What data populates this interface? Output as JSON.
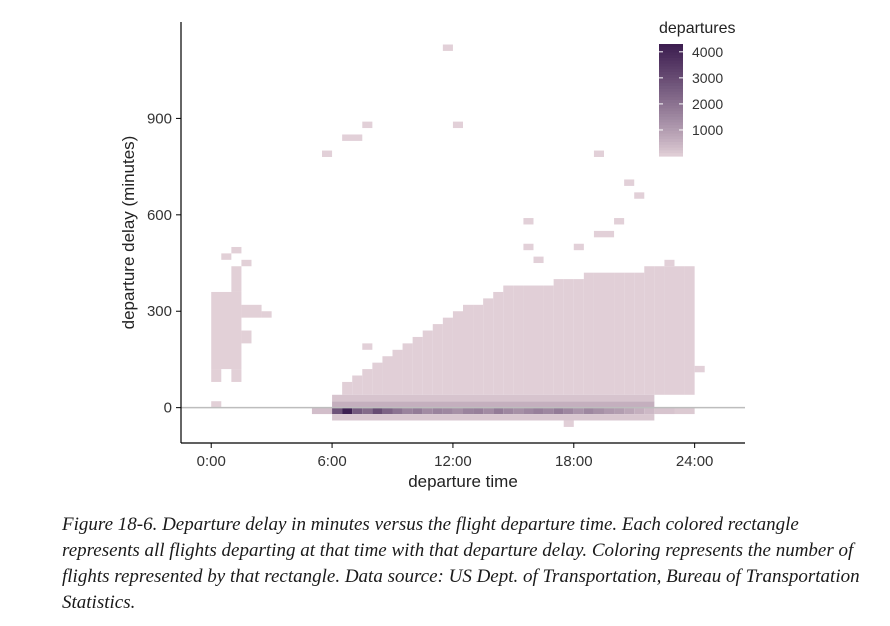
{
  "chart_data": {
    "type": "heatmap",
    "xlabel": "departure time",
    "ylabel": "departure delay (minutes)",
    "xlim": [
      -1.5,
      26.5
    ],
    "ylim": [
      -110,
      1200
    ],
    "x_ticks": [
      0,
      6,
      12,
      18,
      24
    ],
    "x_tick_labels": [
      "0:00",
      "6:00",
      "12:00",
      "18:00",
      "24:00"
    ],
    "y_ticks": [
      0,
      300,
      600,
      900
    ],
    "y_tick_labels": [
      "0",
      "300",
      "600",
      "900"
    ],
    "legend": {
      "title": "departures",
      "placement": "top-right",
      "breaks": [
        1000,
        2000,
        3000,
        4000
      ],
      "break_labels": [
        "1000",
        "2000",
        "3000",
        "4000"
      ],
      "range": [
        0,
        4300
      ],
      "low_color": "#e3d1d8",
      "high_color": "#3b1c4f"
    },
    "grid": false,
    "cell_units": {
      "width_hours": 0.5,
      "height_minutes": 20
    },
    "baseline_y": 0,
    "baseline_color": "#bdbdbd",
    "cells": [
      {
        "x": [
          5.0,
          6.0
        ],
        "y": [
          -20,
          0
        ],
        "value": 300
      },
      {
        "x": [
          6.0,
          6.5
        ],
        "y": [
          -20,
          0
        ],
        "value": 2800
      },
      {
        "x": [
          6.5,
          7.0
        ],
        "y": [
          -20,
          0
        ],
        "value": 4200
      },
      {
        "x": [
          7.0,
          7.5
        ],
        "y": [
          -20,
          0
        ],
        "value": 2600
      },
      {
        "x": [
          7.5,
          8.0
        ],
        "y": [
          -20,
          0
        ],
        "value": 2200
      },
      {
        "x": [
          8.0,
          8.5
        ],
        "y": [
          -20,
          0
        ],
        "value": 3000
      },
      {
        "x": [
          8.5,
          9.0
        ],
        "y": [
          -20,
          0
        ],
        "value": 2400
      },
      {
        "x": [
          9.0,
          9.5
        ],
        "y": [
          -20,
          0
        ],
        "value": 2000
      },
      {
        "x": [
          9.5,
          10.0
        ],
        "y": [
          -20,
          0
        ],
        "value": 1600
      },
      {
        "x": [
          10.0,
          10.5
        ],
        "y": [
          -20,
          0
        ],
        "value": 1800
      },
      {
        "x": [
          10.5,
          11.0
        ],
        "y": [
          -20,
          0
        ],
        "value": 1400
      },
      {
        "x": [
          11.0,
          11.5
        ],
        "y": [
          -20,
          0
        ],
        "value": 1600
      },
      {
        "x": [
          11.5,
          12.0
        ],
        "y": [
          -20,
          0
        ],
        "value": 1500
      },
      {
        "x": [
          12.0,
          12.5
        ],
        "y": [
          -20,
          0
        ],
        "value": 1300
      },
      {
        "x": [
          12.5,
          13.0
        ],
        "y": [
          -20,
          0
        ],
        "value": 1600
      },
      {
        "x": [
          13.0,
          13.5
        ],
        "y": [
          -20,
          0
        ],
        "value": 1700
      },
      {
        "x": [
          13.5,
          14.0
        ],
        "y": [
          -20,
          0
        ],
        "value": 1400
      },
      {
        "x": [
          14.0,
          14.5
        ],
        "y": [
          -20,
          0
        ],
        "value": 1800
      },
      {
        "x": [
          14.5,
          15.0
        ],
        "y": [
          -20,
          0
        ],
        "value": 1500
      },
      {
        "x": [
          15.0,
          15.5
        ],
        "y": [
          -20,
          0
        ],
        "value": 1300
      },
      {
        "x": [
          15.5,
          16.0
        ],
        "y": [
          -20,
          0
        ],
        "value": 1500
      },
      {
        "x": [
          16.0,
          16.5
        ],
        "y": [
          -20,
          0
        ],
        "value": 1700
      },
      {
        "x": [
          16.5,
          17.0
        ],
        "y": [
          -20,
          0
        ],
        "value": 1500
      },
      {
        "x": [
          17.0,
          17.5
        ],
        "y": [
          -20,
          0
        ],
        "value": 1800
      },
      {
        "x": [
          17.5,
          18.0
        ],
        "y": [
          -20,
          0
        ],
        "value": 1500
      },
      {
        "x": [
          18.0,
          18.5
        ],
        "y": [
          -20,
          0
        ],
        "value": 1200
      },
      {
        "x": [
          18.5,
          19.0
        ],
        "y": [
          -20,
          0
        ],
        "value": 1500
      },
      {
        "x": [
          19.0,
          19.5
        ],
        "y": [
          -20,
          0
        ],
        "value": 1300
      },
      {
        "x": [
          19.5,
          20.0
        ],
        "y": [
          -20,
          0
        ],
        "value": 1100
      },
      {
        "x": [
          20.0,
          20.5
        ],
        "y": [
          -20,
          0
        ],
        "value": 1000
      },
      {
        "x": [
          20.5,
          21.0
        ],
        "y": [
          -20,
          0
        ],
        "value": 800
      },
      {
        "x": [
          21.0,
          21.5
        ],
        "y": [
          -20,
          0
        ],
        "value": 600
      },
      {
        "x": [
          21.5,
          22.0
        ],
        "y": [
          -20,
          0
        ],
        "value": 400
      },
      {
        "x": [
          22.0,
          23.0
        ],
        "y": [
          -20,
          0
        ],
        "value": 200
      },
      {
        "x": [
          23.0,
          24.0
        ],
        "y": [
          -20,
          0
        ],
        "value": 100
      },
      {
        "x": [
          6.0,
          22.0
        ],
        "y": [
          0,
          20
        ],
        "value": 600
      },
      {
        "x": [
          6.0,
          22.0
        ],
        "y": [
          20,
          40
        ],
        "value": 200
      },
      {
        "x": [
          6.0,
          22.0
        ],
        "y": [
          -40,
          -20
        ],
        "value": 150
      },
      {
        "x": [
          17.5,
          18.0
        ],
        "y": [
          -60,
          -40
        ],
        "value": 20
      },
      {
        "x": [
          0.0,
          0.5
        ],
        "y": [
          0,
          20
        ],
        "value": 10
      },
      {
        "x": [
          0.0,
          0.5
        ],
        "y": [
          80,
          120
        ],
        "value": 10
      },
      {
        "x": [
          0.0,
          1.5
        ],
        "y": [
          120,
          360
        ],
        "value": 10
      },
      {
        "x": [
          1.0,
          1.5
        ],
        "y": [
          360,
          440
        ],
        "value": 10
      },
      {
        "x": [
          0.5,
          1.0
        ],
        "y": [
          460,
          480
        ],
        "value": 10
      },
      {
        "x": [
          1.0,
          1.5
        ],
        "y": [
          480,
          500
        ],
        "value": 10
      },
      {
        "x": [
          1.5,
          2.0
        ],
        "y": [
          440,
          460
        ],
        "value": 10
      },
      {
        "x": [
          1.5,
          2.5
        ],
        "y": [
          280,
          320
        ],
        "value": 10
      },
      {
        "x": [
          2.5,
          3.0
        ],
        "y": [
          280,
          300
        ],
        "value": 10
      },
      {
        "x": [
          1.5,
          2.0
        ],
        "y": [
          200,
          240
        ],
        "value": 10
      },
      {
        "x": [
          1.0,
          1.5
        ],
        "y": [
          80,
          120
        ],
        "value": 10
      },
      {
        "x": [
          5.5,
          6.0
        ],
        "y": [
          780,
          800
        ],
        "value": 5
      },
      {
        "x": [
          6.5,
          7.5
        ],
        "y": [
          830,
          850
        ],
        "value": 5
      },
      {
        "x": [
          7.5,
          8.0
        ],
        "y": [
          870,
          890
        ],
        "value": 5
      },
      {
        "x": [
          11.5,
          12.0
        ],
        "y": [
          1110,
          1130
        ],
        "value": 5
      },
      {
        "x": [
          12.0,
          12.5
        ],
        "y": [
          870,
          890
        ],
        "value": 5
      },
      {
        "x": [
          7.5,
          8.0
        ],
        "y": [
          180,
          200
        ],
        "value": 5
      },
      {
        "x": [
          15.5,
          16.0
        ],
        "y": [
          570,
          590
        ],
        "value": 5
      },
      {
        "x": [
          19.0,
          19.5
        ],
        "y": [
          780,
          800
        ],
        "value": 5
      },
      {
        "x": [
          20.5,
          21.0
        ],
        "y": [
          690,
          710
        ],
        "value": 5
      },
      {
        "x": [
          21.0,
          21.5
        ],
        "y": [
          650,
          670
        ],
        "value": 5
      },
      {
        "x": [
          20.0,
          20.5
        ],
        "y": [
          570,
          590
        ],
        "value": 5
      },
      {
        "x": [
          19.0,
          20.0
        ],
        "y": [
          530,
          550
        ],
        "value": 5
      },
      {
        "x": [
          18.0,
          18.5
        ],
        "y": [
          490,
          510
        ],
        "value": 5
      },
      {
        "x": [
          15.5,
          16.0
        ],
        "y": [
          490,
          510
        ],
        "value": 5
      },
      {
        "x": [
          16.0,
          16.5
        ],
        "y": [
          450,
          470
        ],
        "value": 5
      },
      {
        "x": [
          22.5,
          23.0
        ],
        "y": [
          440,
          460
        ],
        "value": 5
      },
      {
        "x": [
          24.0,
          24.5
        ],
        "y": [
          110,
          130
        ],
        "value": 5
      }
    ],
    "density": {
      "x_start": 6.0,
      "x_end": 24.0,
      "upper_edge": [
        [
          6.0,
          30
        ],
        [
          7.0,
          90
        ],
        [
          9.0,
          160
        ],
        [
          11.0,
          250
        ],
        [
          13.0,
          320
        ],
        [
          15.0,
          380
        ],
        [
          17.0,
          390
        ],
        [
          19.0,
          420
        ],
        [
          21.0,
          420
        ],
        [
          22.0,
          440
        ],
        [
          24.0,
          440
        ]
      ]
    }
  },
  "caption": "Figure 18-6. Departure delay in minutes versus the flight departure time. Each colored rectangle represents all flights departing at that time with that departure delay. Coloring represents the number of flights represented by that rectangle. Data source: US Dept. of Transportation, Bureau of Transportation Statistics."
}
